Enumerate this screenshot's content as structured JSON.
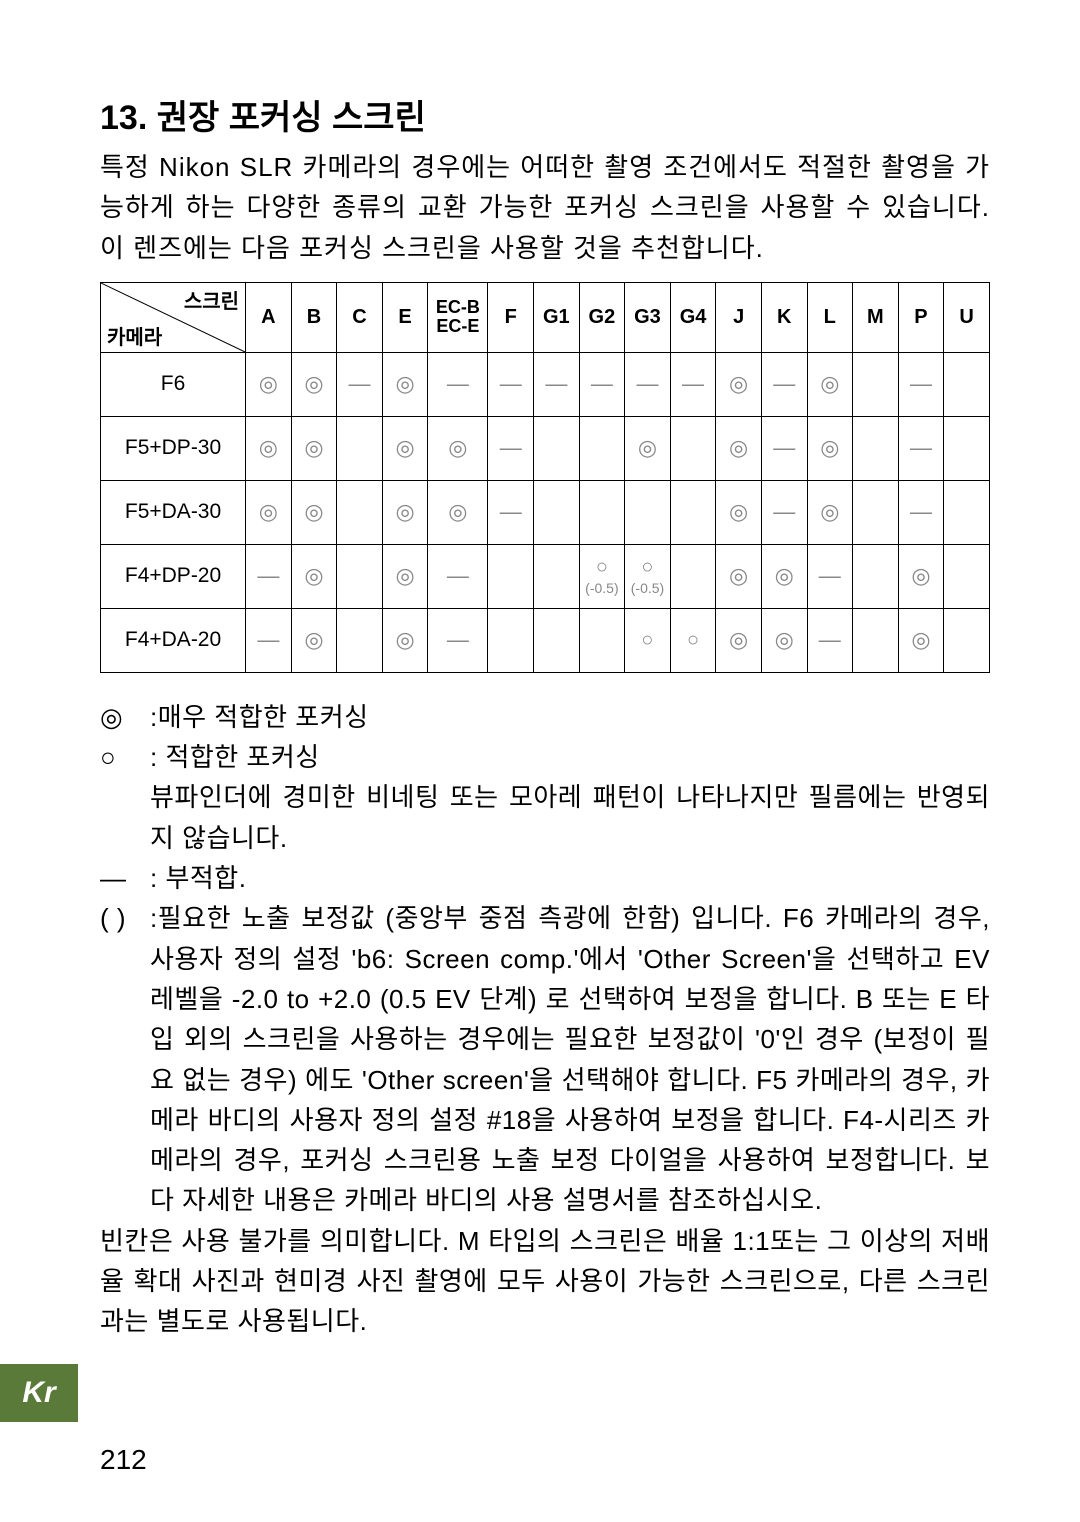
{
  "title": "13. 권장 포커싱 스크린",
  "intro": "특정 Nikon SLR 카메라의 경우에는 어떠한 촬영 조건에서도 적절한 촬영을 가능하게 하는 다양한 종류의 교환 가능한 포커싱 스크린을 사용할 수 있습니다. 이 렌즈에는 다음 포커싱 스크린을 사용할 것을 추천합니다.",
  "table": {
    "diag_top": "스크린",
    "diag_bot": "카메라",
    "columns": [
      "A",
      "B",
      "C",
      "E",
      "EC-B\nEC-E",
      "F",
      "G1",
      "G2",
      "G3",
      "G4",
      "J",
      "K",
      "L",
      "M",
      "P",
      "U"
    ],
    "rows": [
      {
        "label": "F6",
        "cells": [
          "◎",
          "◎",
          "—",
          "◎",
          "—",
          "—",
          "—",
          "—",
          "—",
          "—",
          "◎",
          "—",
          "◎",
          "",
          "—",
          ""
        ]
      },
      {
        "label": "F5+DP-30",
        "cells": [
          "◎",
          "◎",
          "",
          "◎",
          "◎",
          "—",
          "",
          "",
          "◎",
          "",
          "◎",
          "—",
          "◎",
          "",
          "—",
          ""
        ]
      },
      {
        "label": "F5+DA-30",
        "cells": [
          "◎",
          "◎",
          "",
          "◎",
          "◎",
          "—",
          "",
          "",
          "",
          "",
          "◎",
          "—",
          "◎",
          "",
          "—",
          ""
        ]
      },
      {
        "label": "F4+DP-20",
        "cells": [
          "—",
          "◎",
          "",
          "◎",
          "—",
          "",
          "",
          "○(-0.5)",
          "○(-0.5)",
          "",
          "◎",
          "◎",
          "—",
          "",
          "◎",
          ""
        ]
      },
      {
        "label": "F4+DA-20",
        "cells": [
          "—",
          "◎",
          "",
          "◎",
          "—",
          "",
          "",
          "",
          "○",
          "○",
          "◎",
          "◎",
          "—",
          "",
          "◎",
          ""
        ]
      }
    ]
  },
  "legend": {
    "excellent_sym": "◎",
    "excellent_text": ":매우 적합한 포커싱",
    "accept_sym": "○",
    "accept_text_1": ": 적합한 포커싱",
    "accept_text_2": "뷰파인더에 경미한 비네팅 또는 모아레 패턴이 나타나지만 필름에는 반영되지 않습니다.",
    "dash_sym": "—",
    "dash_text": " : 부적합.",
    "paren_sym": "( )",
    "paren_text": ":필요한 노출 보정값 (중앙부 중점 측광에 한함) 입니다. F6 카메라의 경우, 사용자 정의 설정 'b6: Screen comp.'에서 'Other Screen'을 선택하고 EV 레벨을 -2.0 to +2.0 (0.5 EV 단계) 로 선택하여 보정을 합니다. B 또는 E 타입 외의 스크린을 사용하는 경우에는 필요한 보정값이 '0'인 경우 (보정이 필요 없는 경우) 에도 'Other screen'을 선택해야 합니다. F5 카메라의 경우, 카메라 바디의 사용자 정의 설정 #18을 사용하여 보정을 합니다. F4-시리즈 카메라의 경우, 포커싱 스크린용 노출 보정 다이얼을 사용하여 보정합니다. 보다 자세한 내용은 카메라 바디의 사용 설명서를 참조하십시오."
  },
  "closing": "빈칸은 사용 불가를 의미합니다. M 타입의 스크린은 배율 1:1또는 그 이상의 저배율 확대 사진과 현미경 사진 촬영에 모두 사용이 가능한 스크린으로, 다른 스크린과는 별도로 사용됩니다.",
  "lang_tab": "Kr",
  "page_num": "212"
}
